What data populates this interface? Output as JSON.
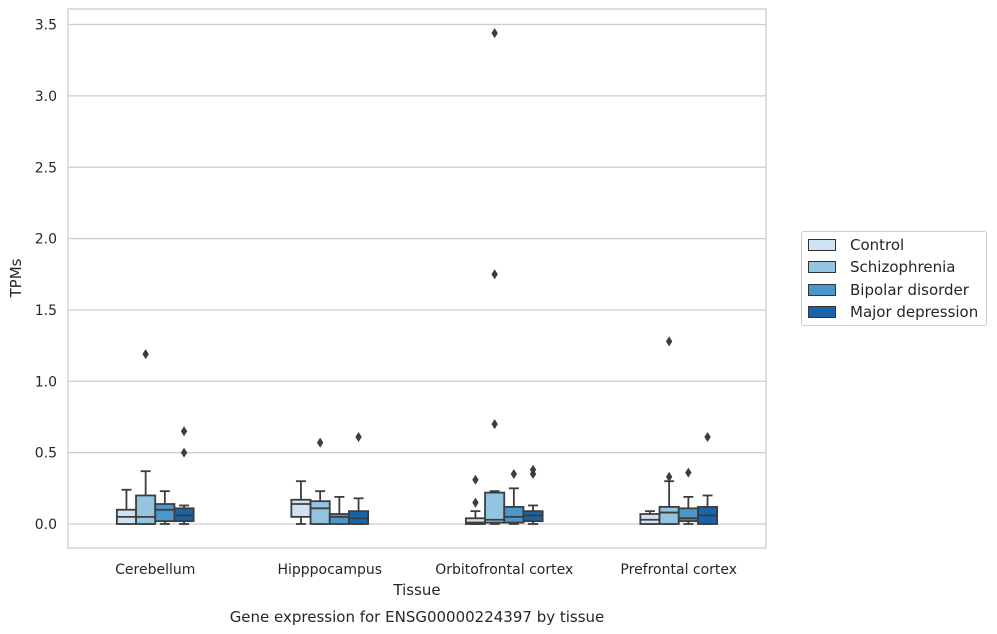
{
  "chart_data": {
    "type": "box",
    "title": "Gene expression for ENSG00000224397 by tissue",
    "xlabel": "Tissue",
    "ylabel": "TPMs",
    "ylim": [
      -0.17,
      3.6
    ],
    "yticks": [
      0.0,
      0.5,
      1.0,
      1.5,
      2.0,
      2.5,
      3.0,
      3.5
    ],
    "ytick_labels": [
      "0.0",
      "0.5",
      "1.0",
      "1.5",
      "2.0",
      "2.5",
      "3.0",
      "3.5"
    ],
    "grid": true,
    "legend_placement": "right",
    "categories": [
      "Cerebellum",
      "Hipppocampus",
      "Orbitofrontal cortex",
      "Prefrontal cortex"
    ],
    "series": [
      {
        "name": "Control",
        "color": "#d0e1f2",
        "boxes": [
          {
            "whislo": 0.0,
            "q1": 0.0,
            "med": 0.05,
            "q3": 0.1,
            "whishi": 0.24,
            "fliers": []
          },
          {
            "whislo": 0.0,
            "q1": 0.05,
            "med": 0.14,
            "q3": 0.17,
            "whishi": 0.3,
            "fliers": []
          },
          {
            "whislo": 0.0,
            "q1": 0.0,
            "med": 0.01,
            "q3": 0.04,
            "whishi": 0.09,
            "fliers": [
              0.15,
              0.31
            ]
          },
          {
            "whislo": 0.0,
            "q1": 0.0,
            "med": 0.03,
            "q3": 0.07,
            "whishi": 0.09,
            "fliers": []
          }
        ]
      },
      {
        "name": "Schizophrenia",
        "color": "#94c4df",
        "boxes": [
          {
            "whislo": 0.0,
            "q1": 0.0,
            "med": 0.05,
            "q3": 0.2,
            "whishi": 0.37,
            "fliers": [
              1.19
            ]
          },
          {
            "whislo": 0.0,
            "q1": 0.0,
            "med": 0.11,
            "q3": 0.16,
            "whishi": 0.23,
            "fliers": [
              0.57
            ]
          },
          {
            "whislo": 0.0,
            "q1": 0.01,
            "med": 0.03,
            "q3": 0.22,
            "whishi": 0.23,
            "fliers": [
              0.7,
              1.75,
              3.44
            ]
          },
          {
            "whislo": 0.0,
            "q1": 0.0,
            "med": 0.08,
            "q3": 0.12,
            "whishi": 0.3,
            "fliers": [
              0.33,
              1.28
            ]
          }
        ]
      },
      {
        "name": "Bipolar disorder",
        "color": "#4a98c9",
        "boxes": [
          {
            "whislo": 0.0,
            "q1": 0.02,
            "med": 0.1,
            "q3": 0.14,
            "whishi": 0.23,
            "fliers": []
          },
          {
            "whislo": 0.0,
            "q1": 0.0,
            "med": 0.05,
            "q3": 0.07,
            "whishi": 0.19,
            "fliers": []
          },
          {
            "whislo": 0.0,
            "q1": 0.01,
            "med": 0.05,
            "q3": 0.12,
            "whishi": 0.25,
            "fliers": [
              0.35
            ]
          },
          {
            "whislo": 0.0,
            "q1": 0.02,
            "med": 0.04,
            "q3": 0.11,
            "whishi": 0.19,
            "fliers": [
              0.36
            ]
          }
        ]
      },
      {
        "name": "Major depression",
        "color": "#1764ab",
        "boxes": [
          {
            "whislo": 0.0,
            "q1": 0.02,
            "med": 0.06,
            "q3": 0.11,
            "whishi": 0.13,
            "fliers": [
              0.5,
              0.65
            ]
          },
          {
            "whislo": 0.0,
            "q1": 0.0,
            "med": 0.04,
            "q3": 0.09,
            "whishi": 0.18,
            "fliers": [
              0.61
            ]
          },
          {
            "whislo": 0.0,
            "q1": 0.02,
            "med": 0.06,
            "q3": 0.09,
            "whishi": 0.13,
            "fliers": [
              0.35,
              0.38
            ]
          },
          {
            "whislo": 0.0,
            "q1": 0.0,
            "med": 0.06,
            "q3": 0.12,
            "whishi": 0.2,
            "fliers": [
              0.61
            ]
          }
        ]
      }
    ]
  }
}
